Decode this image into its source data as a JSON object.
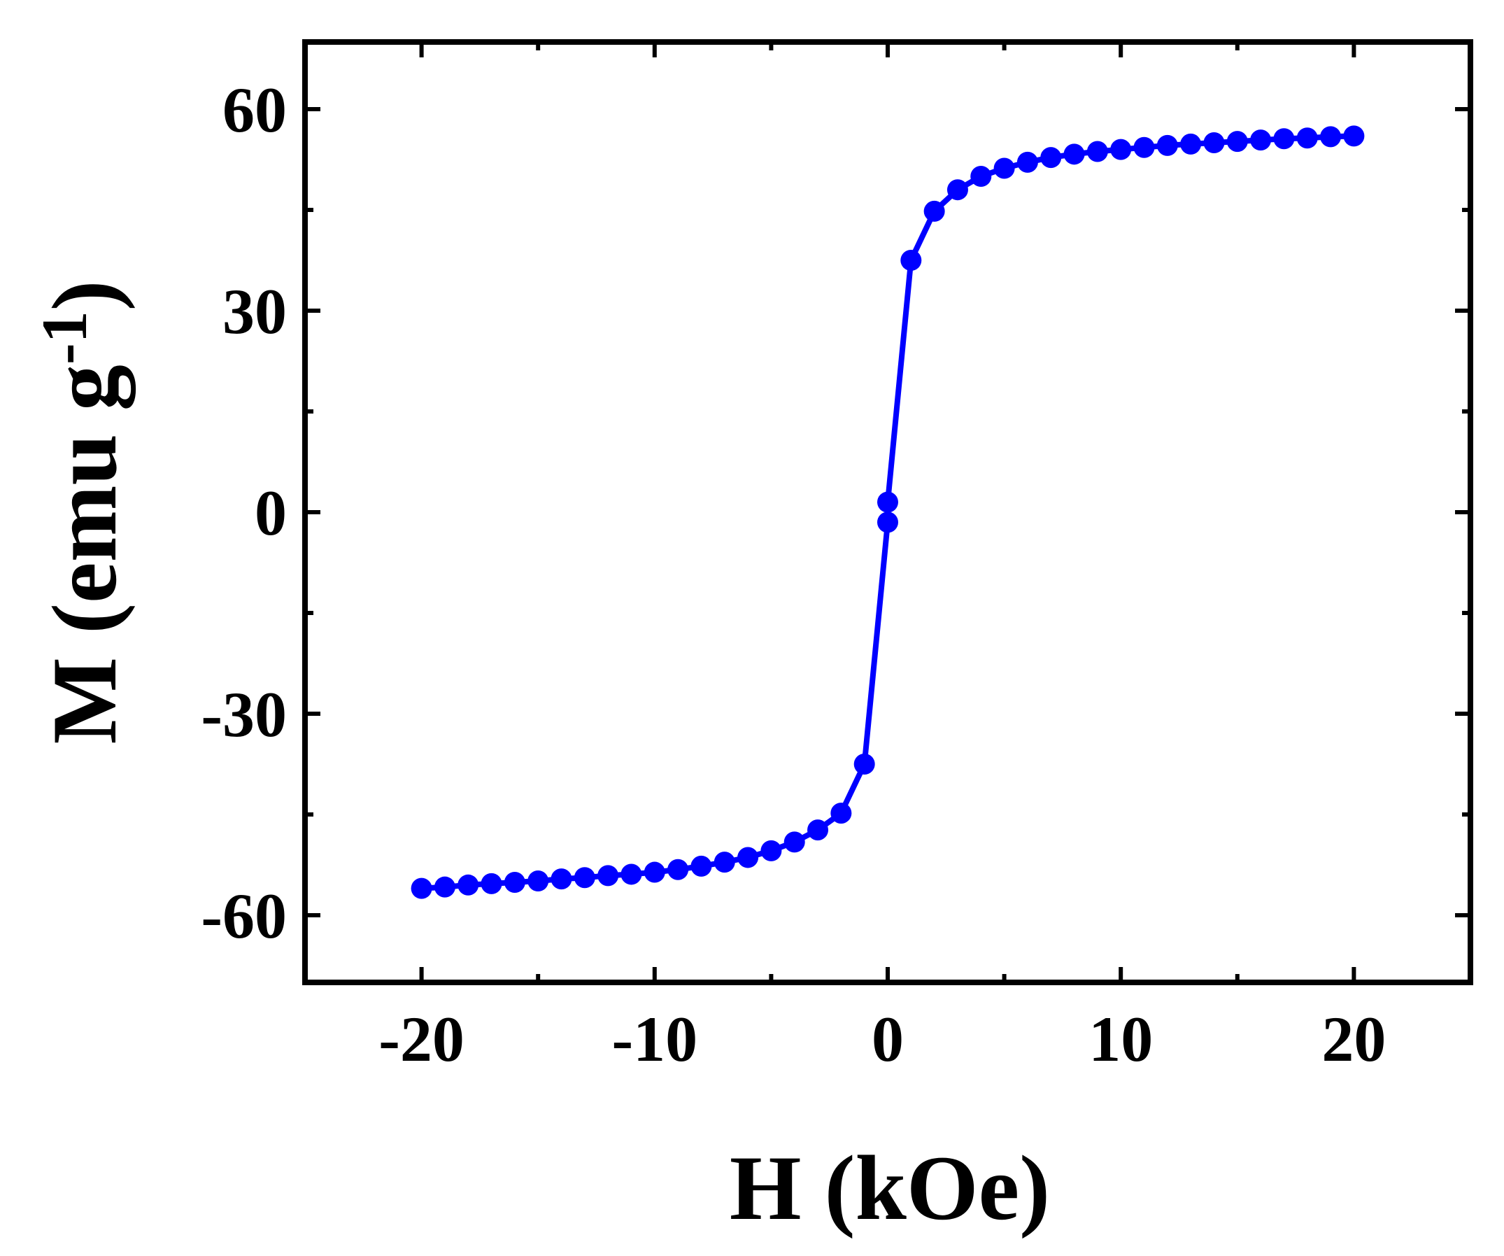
{
  "chart_data": {
    "type": "line",
    "title": "",
    "xlabel": "H (kOe)",
    "ylabel_main": "M (emu g",
    "ylabel_sup": "-1",
    "ylabel_close": ")",
    "xlim": [
      -25,
      25
    ],
    "ylim": [
      -70,
      70
    ],
    "xticks": [
      -20,
      -10,
      0,
      10,
      20
    ],
    "xtick_labels": [
      "-20",
      "-10",
      "0",
      "10",
      "20"
    ],
    "yticks": [
      -60,
      -30,
      0,
      30,
      60
    ],
    "ytick_labels": [
      "-60",
      "-30",
      "0",
      "30",
      "60"
    ],
    "grid": false,
    "series": [
      {
        "color": "#0000ff",
        "marker": "circle",
        "x": [
          -20,
          -19,
          -18,
          -17,
          -16,
          -15,
          -14,
          -13,
          -12,
          -11,
          -10,
          -9,
          -8,
          -7,
          -6,
          -5,
          -4,
          -3,
          -2,
          -1,
          0,
          0,
          1,
          2,
          3,
          4,
          5,
          6,
          7,
          8,
          9,
          10,
          11,
          12,
          13,
          14,
          15,
          16,
          17,
          18,
          19,
          20
        ],
        "y": [
          -56,
          -55.8,
          -55.5,
          -55.3,
          -55.1,
          -54.9,
          -54.6,
          -54.4,
          -54.1,
          -53.9,
          -53.6,
          -53.2,
          -52.7,
          -52.1,
          -51.4,
          -50.4,
          -49.1,
          -47.3,
          -44.8,
          -37.5,
          -1.5,
          1.5,
          37.5,
          44.8,
          48,
          50,
          51.2,
          52.1,
          52.8,
          53.3,
          53.7,
          54,
          54.3,
          54.6,
          54.8,
          55,
          55.2,
          55.4,
          55.6,
          55.7,
          55.9,
          56
        ]
      }
    ]
  }
}
